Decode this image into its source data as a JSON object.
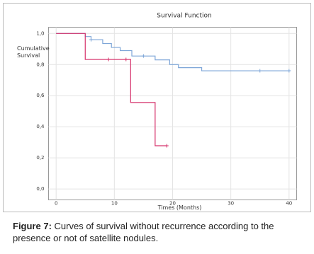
{
  "chart_data": {
    "type": "step",
    "title": "Survival Function",
    "y_label": "Cumulative Survival",
    "x_label": "Times (Months)",
    "xlim": [
      -1.3,
      41.3
    ],
    "ylim": [
      -0.07,
      1.04
    ],
    "xticks": [
      0,
      10,
      20,
      30,
      40
    ],
    "yticks": [
      {
        "value": 0,
        "label": "0,0"
      },
      {
        "value": 0.2,
        "label": "0,2"
      },
      {
        "value": 0.4,
        "label": "0,4"
      },
      {
        "value": 0.6,
        "label": "0,6"
      },
      {
        "value": 0.8,
        "label": "0,8"
      },
      {
        "value": 1,
        "label": "1,0"
      }
    ],
    "grid": true,
    "series": [
      {
        "color": "#7ea6d8",
        "x": [
          0,
          5,
          6,
          8,
          9.5,
          11,
          13,
          17,
          19.5,
          21,
          25,
          40
        ],
        "values": [
          1,
          0.98,
          0.96,
          0.935,
          0.91,
          0.89,
          0.855,
          0.83,
          0.8,
          0.78,
          0.76,
          0.76
        ],
        "censor_x": [
          6,
          15,
          35,
          40
        ],
        "censor_values": [
          0.96,
          0.855,
          0.76,
          0.76
        ]
      },
      {
        "color": "#d6336c",
        "x": [
          0,
          5,
          12.8,
          17,
          19
        ],
        "values": [
          1,
          0.833,
          0.556,
          0.278,
          0.278
        ],
        "censor_x": [
          9,
          12,
          19
        ],
        "censor_values": [
          0.833,
          0.833,
          0.278
        ]
      }
    ]
  },
  "caption": {
    "label": "Figure 7:",
    "text": "Curves of survival without recurrence according to the presence or not of satellite nodules."
  }
}
